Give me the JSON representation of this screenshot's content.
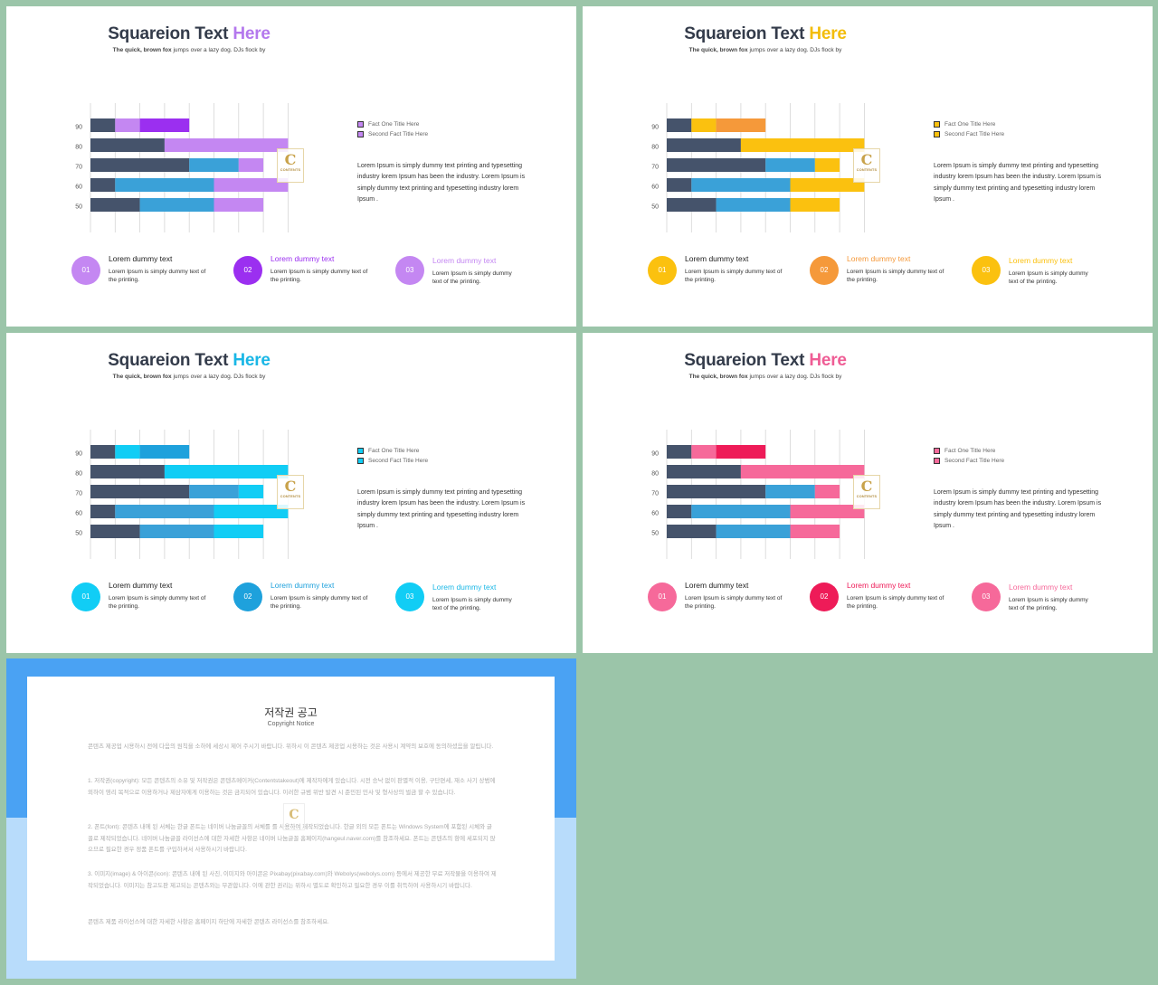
{
  "slides": [
    {
      "title_main": "Squareion Text ",
      "title_accent": "Here",
      "subtitle_bold": "The quick, brown fox",
      "subtitle_rest": " jumps over a lazy dog. DJs flock by",
      "colors": {
        "accent": "#b478ed",
        "accent_dark": "#9b2ff0",
        "bar_light": "#c487f2",
        "dark": "#45536b",
        "blue": "#3aa1d8"
      },
      "legend": [
        {
          "label": "Fact One Title Here"
        },
        {
          "label": "Second Fact Title Here"
        }
      ],
      "description": "Lorem Ipsum is simply dummy text printing and typesetting industry lorem Ipsum has been the industry. Lorem Ipsum is simply dummy text printing and typesetting industry lorem Ipsum .",
      "logo": {
        "letter": "C",
        "text": "CONTENTS"
      },
      "features": [
        {
          "num": "01",
          "title": "Lorem dummy text",
          "text": "Lorem Ipsum is simply dummy text of the printing.",
          "title_colored": false,
          "circle_color": "#c487f2"
        },
        {
          "num": "02",
          "title": "Lorem dummy text",
          "text": "Lorem Ipsum is simply dummy text of the printing.",
          "title_colored": true,
          "title_color": "#9b2ff0",
          "circle_color": "#9b2ff0"
        },
        {
          "num": "03",
          "title": "Lorem dummy text",
          "text": "Lorem Ipsum is simply dummy text of the printing.",
          "title_colored": true,
          "title_color": "#c487f2",
          "circle_color": "#c487f2"
        }
      ]
    },
    {
      "title_main": "Squareion Text ",
      "title_accent": "Here",
      "subtitle_bold": "The quick, brown fox",
      "subtitle_rest": " jumps over a lazy dog. DJs flock by",
      "colors": {
        "accent": "#f3bd0c",
        "accent_dark": "#f5993a",
        "bar_light": "#fbc10f",
        "dark": "#45536b",
        "blue": "#3aa1d8"
      },
      "legend": [
        {
          "label": "Fact One Title Here"
        },
        {
          "label": "Second Fact Title Here"
        }
      ],
      "description": "Lorem Ipsum is simply dummy text printing and typesetting industry lorem Ipsum has been the industry. Lorem Ipsum is simply dummy text printing and typesetting industry lorem Ipsum .",
      "logo": {
        "letter": "C",
        "text": "CONTENTS"
      },
      "features": [
        {
          "num": "01",
          "title": "Lorem dummy text",
          "text": "Lorem Ipsum is simply dummy text of the printing.",
          "title_colored": false,
          "circle_color": "#fbc10f"
        },
        {
          "num": "02",
          "title": "Lorem dummy text",
          "text": "Lorem Ipsum is simply dummy text of the printing.",
          "title_colored": true,
          "title_color": "#f5993a",
          "circle_color": "#f5993a"
        },
        {
          "num": "03",
          "title": "Lorem dummy text",
          "text": "Lorem Ipsum is simply dummy text of the printing.",
          "title_colored": true,
          "title_color": "#fbc10f",
          "circle_color": "#fbc10f"
        }
      ]
    },
    {
      "title_main": "Squareion Text ",
      "title_accent": "Here",
      "subtitle_bold": "The quick, brown fox",
      "subtitle_rest": " jumps over a lazy dog. DJs flock by",
      "colors": {
        "accent": "#1ab7e6",
        "accent_dark": "#1ea1dc",
        "bar_light": "#11cdf5",
        "dark": "#45536b",
        "blue": "#3aa1d8"
      },
      "legend": [
        {
          "label": "Fact One Title Here"
        },
        {
          "label": "Second Fact Title Here"
        }
      ],
      "description": "Lorem Ipsum is simply dummy text printing and typesetting industry lorem Ipsum has been the industry. Lorem Ipsum is simply dummy text printing and typesetting industry lorem Ipsum .",
      "logo": {
        "letter": "C",
        "text": "CONTENTS"
      },
      "features": [
        {
          "num": "01",
          "title": "Lorem dummy text",
          "text": "Lorem Ipsum is simply dummy text of the printing.",
          "title_colored": false,
          "circle_color": "#11cdf5"
        },
        {
          "num": "02",
          "title": "Lorem dummy text",
          "text": "Lorem Ipsum is simply dummy text of the printing.",
          "title_colored": true,
          "title_color": "#1ea1dc",
          "circle_color": "#1ea1dc"
        },
        {
          "num": "03",
          "title": "Lorem dummy text",
          "text": "Lorem Ipsum is simply dummy text of the printing.",
          "title_colored": true,
          "title_color": "#1ab7e6",
          "circle_color": "#11cdf5"
        }
      ]
    },
    {
      "title_main": "Squareion Text ",
      "title_accent": "Here",
      "subtitle_bold": "The quick, brown fox",
      "subtitle_rest": " jumps over a lazy dog. DJs flock by",
      "colors": {
        "accent": "#ef5d95",
        "accent_dark": "#ee1b58",
        "bar_light": "#f6699a",
        "dark": "#45536b",
        "blue": "#3aa1d8"
      },
      "legend": [
        {
          "label": "Fact One Title Here"
        },
        {
          "label": "Second Fact Title Here"
        }
      ],
      "description": "Lorem Ipsum is simply dummy text printing and typesetting industry lorem Ipsum has been the industry. Lorem Ipsum is simply dummy text printing and typesetting industry lorem Ipsum .",
      "logo": {
        "letter": "C",
        "text": "CONTENTS"
      },
      "features": [
        {
          "num": "01",
          "title": "Lorem dummy text",
          "text": "Lorem Ipsum is simply dummy text of the printing.",
          "title_colored": false,
          "circle_color": "#f6699a"
        },
        {
          "num": "02",
          "title": "Lorem dummy text",
          "text": "Lorem Ipsum is simply dummy text of the printing.",
          "title_colored": true,
          "title_color": "#ee1b58",
          "circle_color": "#ee1b58"
        },
        {
          "num": "03",
          "title": "Lorem dummy text",
          "text": "Lorem Ipsum is simply dummy text of the printing.",
          "title_colored": true,
          "title_color": "#f6699a",
          "circle_color": "#f6699a"
        }
      ]
    }
  ],
  "chart_data": {
    "type": "bar",
    "orientation": "horizontal-stacked",
    "categories": [
      "90",
      "80",
      "70",
      "60",
      "50"
    ],
    "segments_per_row": [
      [
        {
          "value": 1,
          "tone": "dark"
        },
        {
          "value": 1,
          "tone": "light"
        },
        {
          "value": 2,
          "tone": "accent_dark"
        }
      ],
      [
        {
          "value": 3,
          "tone": "dark"
        },
        {
          "value": 5,
          "tone": "light"
        }
      ],
      [
        {
          "value": 4,
          "tone": "dark"
        },
        {
          "value": 2,
          "tone": "blue"
        },
        {
          "value": 1,
          "tone": "light"
        }
      ],
      [
        {
          "value": 1,
          "tone": "dark"
        },
        {
          "value": 4,
          "tone": "blue"
        },
        {
          "value": 3,
          "tone": "light"
        }
      ],
      [
        {
          "value": 2,
          "tone": "dark"
        },
        {
          "value": 3,
          "tone": "blue"
        },
        {
          "value": 2,
          "tone": "light"
        }
      ]
    ],
    "xlim": [
      0,
      8
    ],
    "grid": true,
    "legend_position": "right"
  },
  "copyright": {
    "title": "저작권 공고",
    "subtitle": "Copyright Notice",
    "paragraphs": [
      "콘텐츠 제공업 시용하시 전에 다음의 원칙을 소하에 세상시 제어 주시기 바랍니다. 위하시 이 콘텐츠 제공업 시용하는 것은 사용시 계약의 보호에 동의하셨음을 알립니다.",
      "1. 저작권(copyright): 모든 콘텐츠의 소유 및 저작권은 콘텐츠메이커(Contentstakeout)에 제작자에게 있습니다. 시전 승낙 없이 판별적 이용, 구단편세, 재소 사기 상범에 외하이 영리 목적으로 이용하거나 제삼자에게 이용하는 것은 금지되어 있습니다. 이러한 규범 위반 발견 시 준민된 민사 및 형사상의 벌금 할 수 있습니다.",
      "2. 폰트(font): 콘텐츠 내에 된 서체는 한글 폰트는 네이버 나눔글꼴의 서체를 를 사용하여 제작되었습니다. 한글 외의 모든 폰트는 Windows System에 포함된 시체와 글꼴로 제작되었습니다. 네이버 나눔글꼴 라이선스에 대한 자세한 사항은 네이버 나눔글꼴 홈페이지(hangeul.naver.com)를 참조하세요. 폰트는 콘텐츠의 항에 세포되지 않으므로 필요한 경우 정품 폰트를 구입하셔서 사용하시기 바랍니다.",
      "3. 이미지(image) & 아이콘(icon): 콘텐츠 내에 된 사진, 이미지와 아이콘은 Pixabay(pixabay.com)와 Webolys(webolys.com) 등에서 제공한 무료 저작물을 이용하여 제작되었습니다. 이미지는 참고도판 제고되는 콘텐츠와는 무관합니다. 이에 관한 권리는 위하시 별도로 확인하고 필요한 경우 이를 취득하여 사용하시기 바랍니다.",
      "콘텐츠 제품 라이선스에 대한 자세한 사항은 홈페이지 하단에 자세한 콘텐츠 라이선스를 참조하세요."
    ]
  }
}
